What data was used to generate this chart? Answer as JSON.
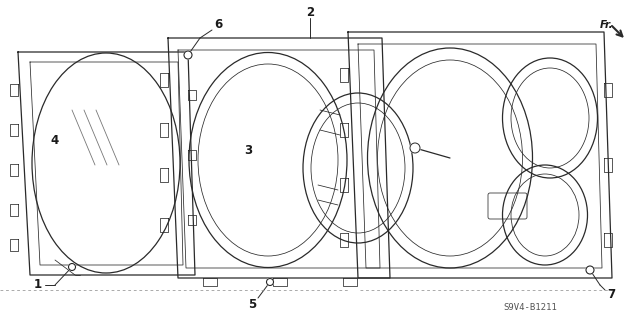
{
  "bg_color": "#ffffff",
  "line_color": "#2a2a2a",
  "text_color": "#1a1a1a",
  "part_number": "S9V4-B1211",
  "figsize": [
    6.4,
    3.19
  ],
  "dpi": 100
}
